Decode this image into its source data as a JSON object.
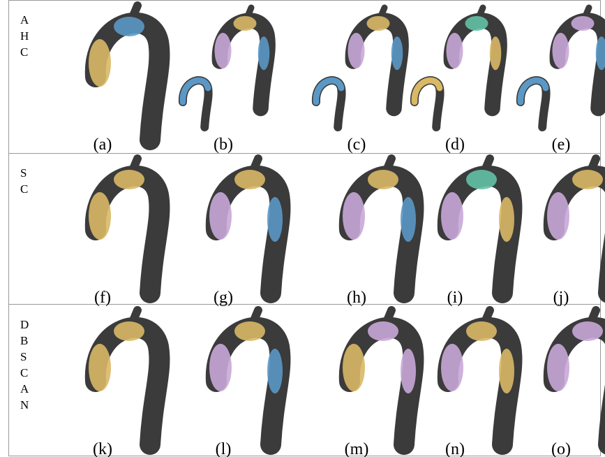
{
  "rows": [
    {
      "letters": [
        "A",
        "H",
        "C"
      ],
      "panels": [
        "(a)",
        "(b)",
        "(c)",
        "(d)",
        "(e)"
      ]
    },
    {
      "letters": [
        "S",
        "C"
      ],
      "panels": [
        "(f)",
        "(g)",
        "(h)",
        "(i)",
        "(j)"
      ]
    },
    {
      "letters": [
        "D",
        "B",
        "S",
        "C",
        "A",
        "N"
      ],
      "panels": [
        "(k)",
        "(l)",
        "(m)",
        "(n)",
        "(o)"
      ]
    }
  ]
}
